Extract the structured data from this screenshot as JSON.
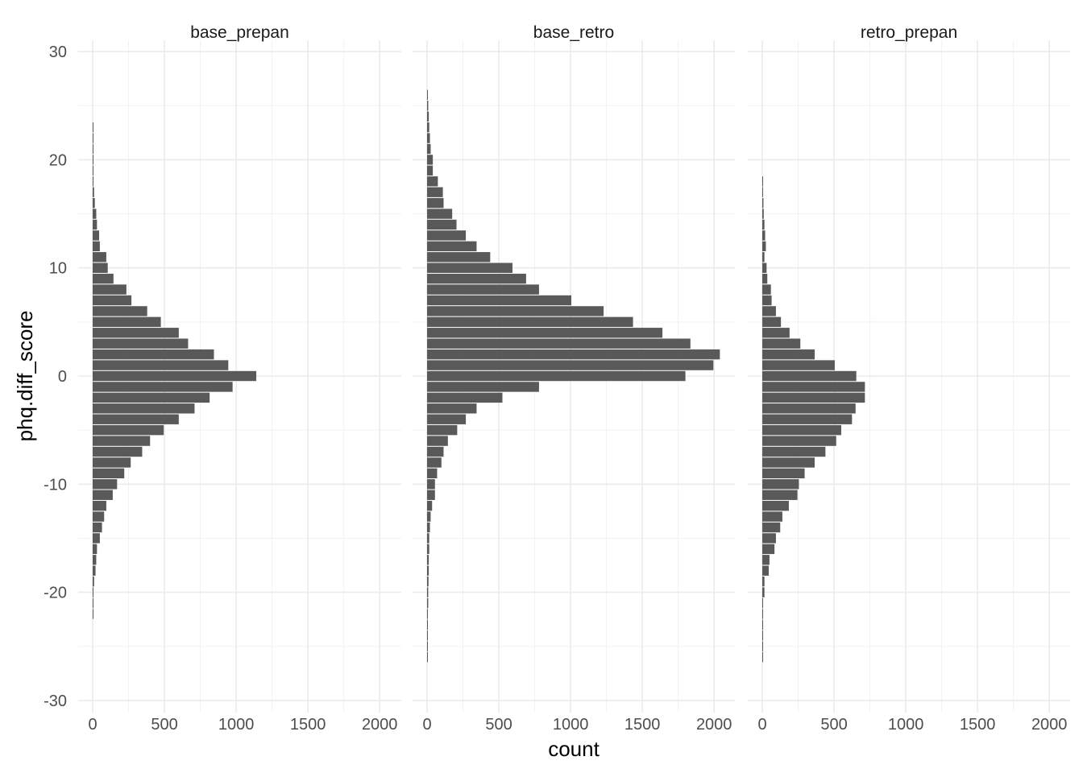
{
  "chart_data": {
    "type": "bar",
    "orientation": "horizontal",
    "xlabel": "count",
    "ylabel": "phq.diff_score",
    "xlim": [
      0,
      2150
    ],
    "ylim": [
      -30,
      30
    ],
    "xticks": [
      0,
      500,
      1000,
      1500,
      2000
    ],
    "yticks": [
      -30,
      -20,
      -10,
      0,
      10,
      20,
      30
    ],
    "grid": true,
    "bar_color": "#595959",
    "y_bins": [
      -22,
      -21,
      -20,
      -19,
      -18,
      -17,
      -16,
      -15,
      -14,
      -13,
      -12,
      -11,
      -10,
      -9,
      -8,
      -7,
      -6,
      -5,
      -4,
      -3,
      -2,
      -1,
      0,
      1,
      2,
      3,
      4,
      5,
      6,
      7,
      8,
      9,
      10,
      11,
      12,
      13,
      14,
      15,
      16,
      17,
      18,
      19,
      20,
      21,
      22,
      23
    ],
    "panels": [
      {
        "name": "base_prepan",
        "counts": [
          2,
          5,
          5,
          10,
          20,
          25,
          30,
          50,
          65,
          80,
          95,
          140,
          170,
          220,
          265,
          345,
          400,
          495,
          600,
          710,
          815,
          975,
          1140,
          945,
          845,
          665,
          600,
          475,
          380,
          270,
          235,
          145,
          105,
          95,
          50,
          45,
          30,
          25,
          15,
          10,
          5,
          5,
          3,
          3,
          3,
          3
        ]
      },
      {
        "name": "base_retro",
        "y_bins_override": [
          -26,
          -25,
          -24,
          -23,
          -22,
          -21,
          -20,
          -19,
          -18,
          -17,
          -16,
          -15,
          -14,
          -13,
          -12,
          -11,
          -10,
          -9,
          -8,
          -7,
          -6,
          -5,
          -4,
          -3,
          -2,
          -1,
          0,
          1,
          2,
          3,
          4,
          5,
          6,
          7,
          8,
          9,
          10,
          11,
          12,
          13,
          14,
          15,
          16,
          17,
          18,
          19,
          20,
          21,
          22,
          23,
          24,
          25,
          26
        ],
        "counts": [
          3,
          3,
          3,
          5,
          5,
          8,
          8,
          10,
          12,
          12,
          15,
          15,
          20,
          25,
          35,
          55,
          55,
          70,
          100,
          115,
          145,
          210,
          270,
          345,
          525,
          780,
          1800,
          1995,
          2040,
          1835,
          1640,
          1435,
          1230,
          1005,
          780,
          690,
          595,
          440,
          345,
          270,
          205,
          175,
          115,
          110,
          75,
          40,
          40,
          25,
          20,
          15,
          12,
          8,
          5
        ]
      },
      {
        "name": "retro_prepan",
        "y_bins_override": [
          -26,
          -25,
          -24,
          -23,
          -22,
          -21,
          -20,
          -19,
          -18,
          -17,
          -16,
          -15,
          -14,
          -13,
          -12,
          -11,
          -10,
          -9,
          -8,
          -7,
          -6,
          -5,
          -4,
          -3,
          -2,
          -1,
          0,
          1,
          2,
          3,
          4,
          5,
          6,
          7,
          8,
          9,
          10,
          11,
          12,
          13,
          14,
          15,
          16,
          17,
          18
        ],
        "counts": [
          3,
          2,
          2,
          3,
          5,
          5,
          15,
          15,
          45,
          50,
          85,
          95,
          125,
          140,
          185,
          245,
          255,
          295,
          365,
          440,
          515,
          550,
          625,
          650,
          715,
          715,
          655,
          505,
          365,
          265,
          190,
          130,
          95,
          65,
          60,
          35,
          30,
          15,
          25,
          20,
          15,
          10,
          8,
          5,
          3
        ]
      }
    ]
  }
}
